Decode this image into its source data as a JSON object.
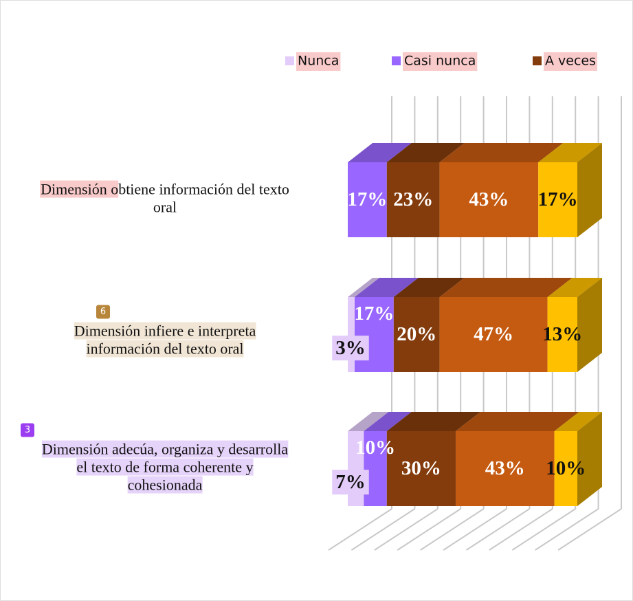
{
  "chart_data": {
    "type": "bar3d_stacked_horizontal",
    "categories": [
      [
        "Dimensión obtiene información del texto",
        "oral"
      ],
      [
        "Dimensión infiere e interpreta",
        "información del texto oral"
      ],
      [
        "Dimensión adecúa, organiza y desarrolla",
        "el texto de forma coherente y",
        "cohesionada"
      ]
    ],
    "annotations": [
      {
        "category": 1,
        "text": "6",
        "color": "#b8863b",
        "highlight": "#f1e6d6"
      },
      {
        "category": 2,
        "text": "3",
        "color": "#9b3df0",
        "highlight": "#e6d3fa"
      }
    ],
    "series": [
      {
        "name": "Nunca",
        "color": "#e3ccfa",
        "values": [
          0,
          3,
          7
        ],
        "value_labels": [
          null,
          "3%",
          "7%"
        ]
      },
      {
        "name": "Casi nunca",
        "color": "#9966ff",
        "values": [
          17,
          17,
          10
        ],
        "value_labels": [
          "17%",
          "17%",
          "10%"
        ]
      },
      {
        "name": "A veces",
        "color": "#843c0c",
        "values": [
          23,
          20,
          30
        ],
        "value_labels": [
          "23%",
          "20%",
          "30%"
        ]
      },
      {
        "color": "#c55a11",
        "values": [
          43,
          47,
          43
        ],
        "value_labels": [
          "43%",
          "47%",
          "43%"
        ]
      },
      {
        "color": "#ffc000",
        "values": [
          17,
          13,
          10
        ],
        "value_labels": [
          "17%",
          "13%",
          "10%"
        ]
      }
    ],
    "xlim": [
      0,
      100
    ],
    "xticks": [
      0,
      10,
      20,
      30,
      40,
      50,
      60,
      70,
      80,
      90,
      100
    ],
    "grid": true,
    "legend": "top"
  }
}
